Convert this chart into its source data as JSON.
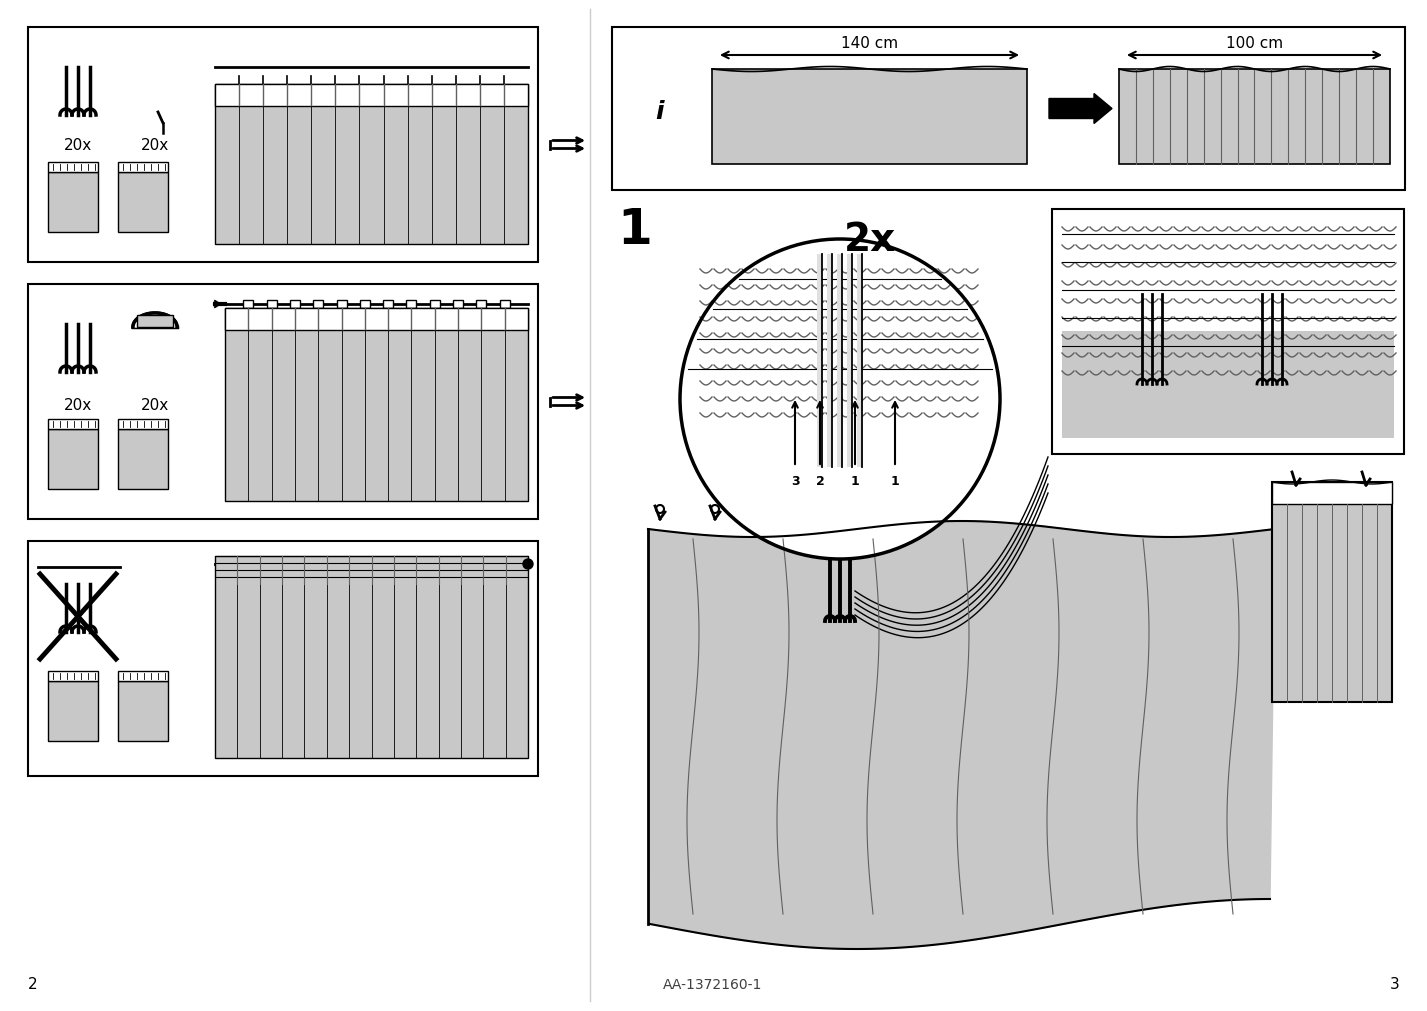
{
  "bg_color": "#ffffff",
  "line_color": "#000000",
  "light_gray": "#c8c8c8",
  "medium_gray": "#a0a0a0",
  "dark_gray": "#606060",
  "page_left": "2",
  "page_right": "3",
  "doc_id": "AA-1372160-1",
  "dim_140": "140 cm",
  "dim_100": "100 cm",
  "count_20x": "20x",
  "step1_label": "1",
  "step2x_label": "2x"
}
